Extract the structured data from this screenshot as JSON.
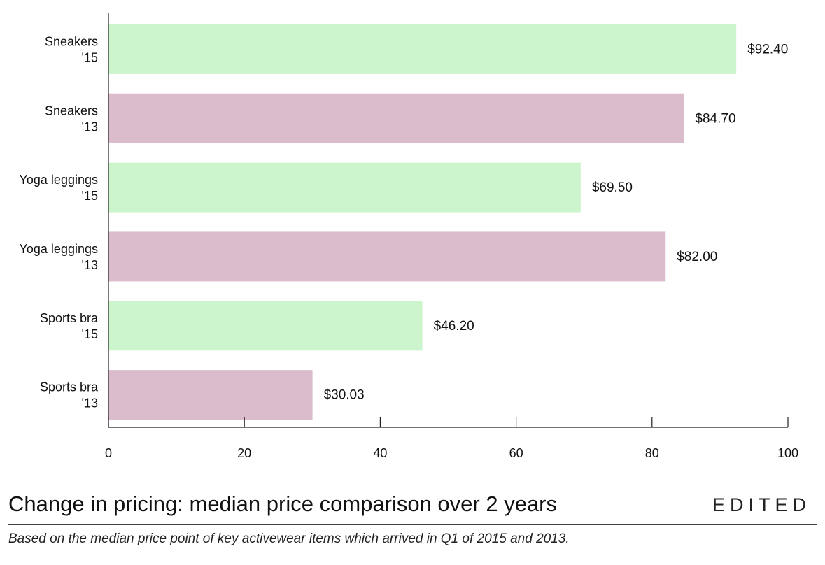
{
  "chart_data": {
    "type": "bar",
    "orientation": "horizontal",
    "title": "Change in pricing: median price comparison over 2 years",
    "subtitle": "Based on the median price point of key activewear items which arrived in Q1 of 2015 and 2013.",
    "brand": "EDITED",
    "categories": [
      [
        "Sneakers",
        "'15"
      ],
      [
        "Sneakers",
        "'13"
      ],
      [
        "Yoga leggings",
        "'15"
      ],
      [
        "Yoga leggings",
        "'13"
      ],
      [
        "Sports bra",
        "'15"
      ],
      [
        "Sports bra",
        "'13"
      ]
    ],
    "values": [
      92.4,
      84.7,
      69.5,
      82.0,
      46.2,
      30.03
    ],
    "value_labels": [
      "$92.40",
      "$84.70",
      "$69.50",
      "$82.00",
      "$46.20",
      "$30.03"
    ],
    "bar_colors": [
      "#cdf5cd",
      "#dbbccc",
      "#cdf5cd",
      "#dbbccc",
      "#cdf5cd",
      "#dbbccc"
    ],
    "xlim": [
      0,
      100
    ],
    "xticks": [
      0,
      20,
      40,
      60,
      80,
      100
    ],
    "grid": false
  }
}
